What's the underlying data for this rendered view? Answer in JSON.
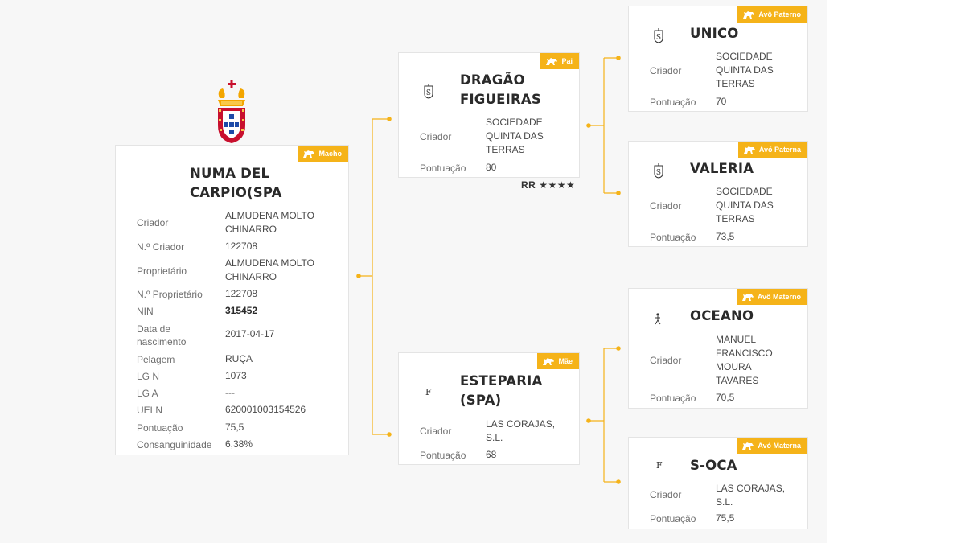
{
  "main": {
    "name": "NUMA DEL CARPIO(SPA",
    "name_lines": [
      "NUMA DEL",
      "CARPIO(SPA"
    ],
    "badge": "Macho",
    "fields": [
      {
        "label": "Criador",
        "value_lines": [
          "ALMUDENA MOLTO",
          "CHINARRO"
        ]
      },
      {
        "label": "N.º Criador",
        "value_lines": [
          "122708"
        ]
      },
      {
        "label": "Proprietário",
        "value_lines": [
          "ALMUDENA MOLTO",
          "CHINARRO"
        ]
      },
      {
        "label": "N.º Proprietário",
        "value_lines": [
          "122708"
        ]
      },
      {
        "label": "NIN",
        "value_lines": [
          "315452"
        ]
      },
      {
        "label": "Data de nascimento",
        "label_lines": [
          "Data de",
          "nascimento"
        ],
        "value_lines": [
          "2017-04-17"
        ]
      },
      {
        "label": "Pelagem",
        "value_lines": [
          "RUÇA"
        ]
      },
      {
        "label": "LG N",
        "value_lines": [
          "1073"
        ]
      },
      {
        "label": "LG A",
        "value_lines": [
          "---"
        ]
      },
      {
        "label": "UELN",
        "value_lines": [
          "620001003154526"
        ]
      },
      {
        "label": "Pontuação",
        "value_lines": [
          "75,5"
        ]
      },
      {
        "label": "Consanguinidade",
        "value_lines": [
          "6,38%"
        ]
      }
    ]
  },
  "sire": {
    "badge": "Pai",
    "name_lines": [
      "DRAGÃO",
      "FIGUEIRAS"
    ],
    "icon": "brand-s-icon",
    "criador_label": "Criador",
    "criador_lines": [
      "SOCIEDADE",
      "QUINTA DAS",
      "TERRAS"
    ],
    "pontuacao_label": "Pontuação",
    "pontuacao": "80",
    "rating_label": "RR",
    "rating_stars": "★★★★"
  },
  "dam": {
    "badge": "Mãe",
    "name_lines": [
      "ESTEPARIA",
      "(SPA)"
    ],
    "icon_letter": "F",
    "criador_label": "Criador",
    "criador_lines": [
      "LAS CORAJAS,",
      "S.L."
    ],
    "pontuacao_label": "Pontuação",
    "pontuacao": "68"
  },
  "pat_grandsire": {
    "badge": "Avô Paterno",
    "name_lines": [
      "UNICO"
    ],
    "icon": "brand-s-icon",
    "criador_label": "Criador",
    "criador_lines": [
      "SOCIEDADE",
      "QUINTA DAS",
      "TERRAS"
    ],
    "pontuacao_label": "Pontuação",
    "pontuacao": "70"
  },
  "pat_granddam": {
    "badge": "Avó Paterna",
    "name_lines": [
      "VALERIA"
    ],
    "icon": "brand-s-icon",
    "criador_label": "Criador",
    "criador_lines": [
      "SOCIEDADE",
      "QUINTA DAS",
      "TERRAS"
    ],
    "pontuacao_label": "Pontuação",
    "pontuacao": "73,5"
  },
  "mat_grandsire": {
    "badge": "Avô Materno",
    "name_lines": [
      "OCEANO"
    ],
    "icon": "brand-walker-icon",
    "criador_label": "Criador",
    "criador_lines": [
      "MANUEL",
      "FRANCISCO",
      "MOURA",
      "TAVARES"
    ],
    "pontuacao_label": "Pontuação",
    "pontuacao": "70,5"
  },
  "mat_granddam": {
    "badge": "Avó Materna",
    "name_lines": [
      "S-OCA"
    ],
    "icon_letter": "F",
    "criador_label": "Criador",
    "criador_lines": [
      "LAS CORAJAS,",
      "S.L."
    ],
    "pontuacao_label": "Pontuação",
    "pontuacao": "75,5"
  },
  "colors": {
    "badge": "#f5b319",
    "connector": "#f5b319",
    "card_border": "#e4e4e4"
  },
  "icons": {
    "badge_icon": "horse-icon",
    "crest": "royal-crest-icon"
  }
}
